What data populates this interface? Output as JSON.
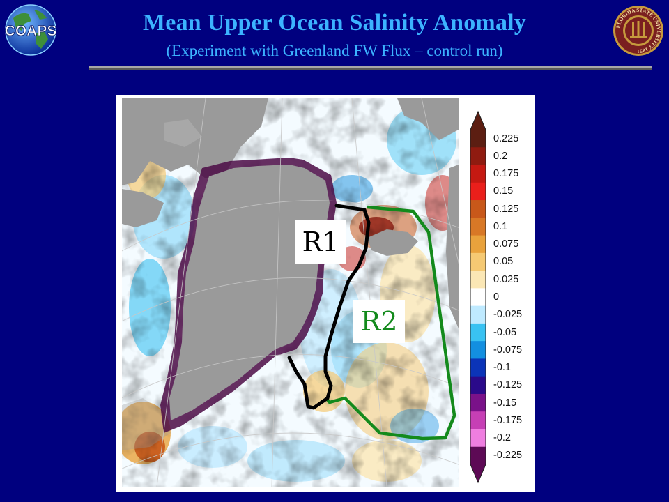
{
  "header": {
    "title": "Mean Upper Ocean Salinity Anomaly",
    "subtitle": "(Experiment with Greenland FW Flux – control run)",
    "left_logo_text": "COAPS",
    "right_logo_text": "FLORIDA STATE UNIVERSITY 1851"
  },
  "colorbar": {
    "ticks": [
      "0.225",
      "0.2",
      "0.175",
      "0.15",
      "0.125",
      "0.1",
      "0.075",
      "0.05",
      "0.025",
      "0",
      "-0.025",
      "-0.05",
      "-0.075",
      "-0.1",
      "-0.125",
      "-0.15",
      "-0.175",
      "-0.2",
      "-0.225"
    ],
    "colors": [
      "#5c1e12",
      "#8f1b10",
      "#c51912",
      "#ea1f1b",
      "#c8581a",
      "#d87826",
      "#e9a23c",
      "#f5c973",
      "#fbe7b5",
      "#ffffff",
      "#bfeaff",
      "#39c2f2",
      "#138fe0",
      "#0b34b8",
      "#2a0a8a",
      "#7a1289",
      "#c63fb5",
      "#ef7ee0",
      "#5d0a55"
    ],
    "anomaly_range": [
      -0.225,
      0.225
    ]
  },
  "regions": {
    "r1_label": "R1",
    "r2_label": "R2",
    "r1_color": "#000000",
    "r2_color": "#138a1c"
  },
  "palette": {
    "background": "#00007f",
    "title_color": "#3cb3ff",
    "land": "#9a9a9a"
  }
}
